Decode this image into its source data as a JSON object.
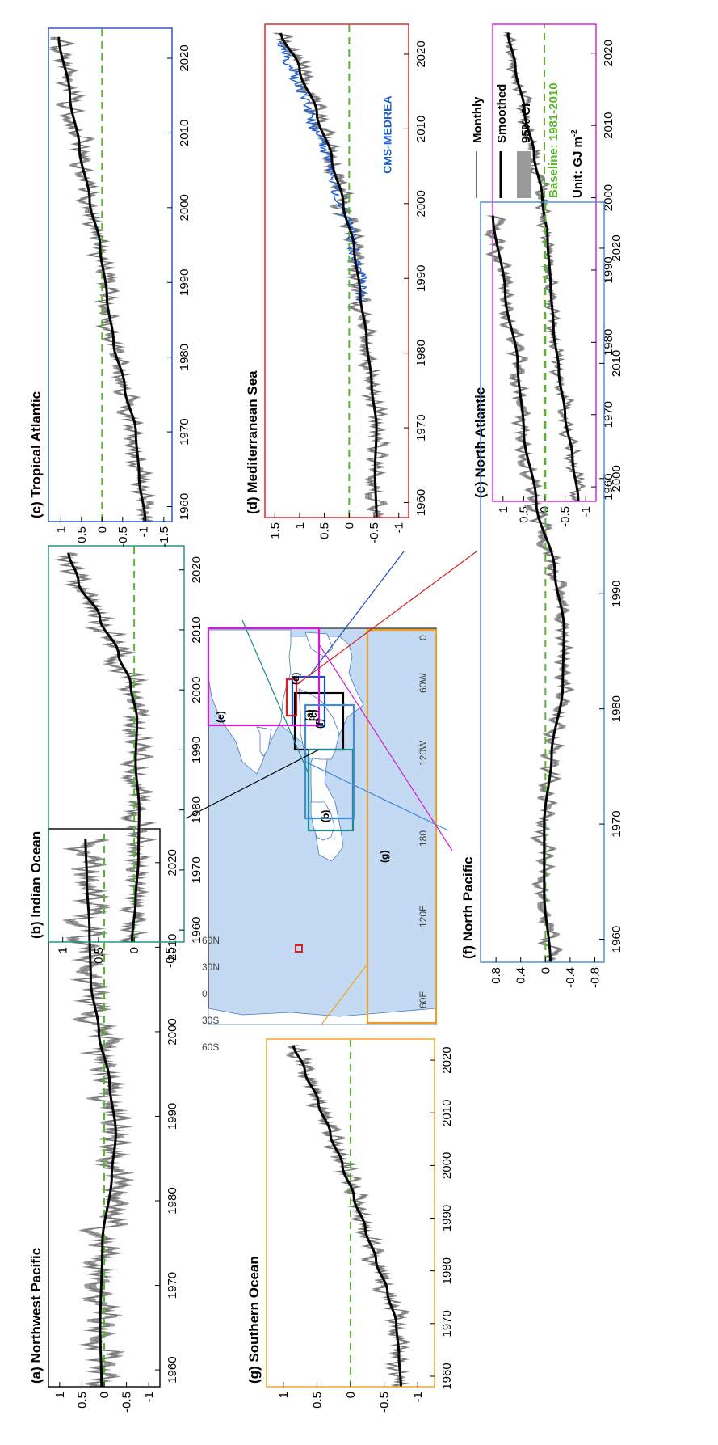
{
  "figure": {
    "map": {
      "lat_labels": [
        "60N",
        "30N",
        "0",
        "30S",
        "60S"
      ],
      "lon_labels": [
        "60E",
        "120E",
        "180",
        "120W",
        "60W",
        "0"
      ],
      "box_labels": [
        "(a)",
        "(b)",
        "(c)",
        "(d)",
        "(e)",
        "(f)",
        "(g)"
      ]
    },
    "legend": {
      "monthly": "Monthly",
      "smoothed": "Smoothed",
      "ci": "95% CI",
      "baseline": "Baseline: 1981-2010",
      "unit_prefix": "Unit: GJ m",
      "unit_sup": "-2"
    },
    "colors": {
      "monthly": "#6e6e6e",
      "ci": "#9a9a9a",
      "smoothed": "#000000",
      "baseline": "#5ab52e",
      "medrea": "#1f5fd6",
      "ocean": "#c4daf2",
      "land": "#ffffff"
    }
  },
  "chart_data": [
    {
      "id": "a",
      "type": "line",
      "title": "(a) Northwest Pacific",
      "frame": "#000000",
      "x_ticks": [
        1960,
        1970,
        1980,
        1990,
        2000,
        2010,
        2020
      ],
      "y_ticks": [
        -1,
        -0.5,
        0,
        0.5,
        1
      ],
      "y_tick_labels": [
        "-1",
        "-0.5",
        "0",
        "0.5",
        "1"
      ],
      "xlim": [
        1958,
        2024
      ],
      "ylim": [
        -1.25,
        1.25
      ],
      "baseline": 0,
      "smoothed": {
        "x": [
          1958,
          1965,
          1975,
          1983,
          1988,
          1994,
          2000,
          2006,
          2012,
          2018,
          2023
        ],
        "y": [
          0.06,
          0.09,
          0.04,
          -0.17,
          -0.26,
          -0.12,
          0.12,
          0.3,
          0.33,
          0.39,
          0.42
        ]
      },
      "noise": 0.3
    },
    {
      "id": "b",
      "type": "line",
      "title": "(b) Indian Ocean",
      "frame": "#1a8a8a",
      "x_ticks": [
        1960,
        1970,
        1980,
        1990,
        2000,
        2010,
        2020
      ],
      "y_ticks": [
        -0.5,
        0,
        0.5,
        1
      ],
      "y_tick_labels": [
        "-0.5",
        "0",
        "0.5",
        "1"
      ],
      "xlim": [
        1958,
        2024
      ],
      "ylim": [
        -0.7,
        1.2
      ],
      "baseline": 0,
      "smoothed": {
        "x": [
          1958,
          1965,
          1972,
          1980,
          1988,
          1995,
          2001,
          2006,
          2012,
          2018,
          2023
        ],
        "y": [
          0.03,
          -0.02,
          -0.06,
          -0.07,
          -0.02,
          -0.04,
          0.05,
          0.22,
          0.48,
          0.78,
          0.92
        ]
      },
      "noise": 0.14
    },
    {
      "id": "c",
      "type": "line",
      "title": "(c) Tropical Atlantic",
      "frame": "#1f4fc4",
      "x_ticks": [
        1960,
        1970,
        1980,
        1990,
        2000,
        2010,
        2020
      ],
      "y_ticks": [
        -1.5,
        -1,
        -0.5,
        0,
        0.5,
        1
      ],
      "y_tick_labels": [
        "-1.5",
        "-1",
        "-0.5",
        "0",
        "0.5",
        "1"
      ],
      "xlim": [
        1958,
        2024
      ],
      "ylim": [
        -1.7,
        1.3
      ],
      "baseline": 0,
      "smoothed": {
        "x": [
          1958,
          1964,
          1970,
          1976,
          1982,
          1988,
          1995,
          2001,
          2008,
          2015,
          2023
        ],
        "y": [
          -1.05,
          -0.9,
          -0.82,
          -0.55,
          -0.28,
          -0.12,
          0.05,
          0.3,
          0.55,
          0.78,
          1.05
        ]
      },
      "noise": 0.2
    },
    {
      "id": "d",
      "type": "line",
      "title": "(d) Mediterranean Sea",
      "frame": "#d62020",
      "annotation": "CMS-MEDREA",
      "x_ticks": [
        1960,
        1970,
        1980,
        1990,
        2000,
        2010,
        2020
      ],
      "y_ticks": [
        -1,
        -0.5,
        0,
        0.5,
        1,
        1.5
      ],
      "y_tick_labels": [
        "-1",
        "-0.5",
        "0",
        "0.5",
        "1",
        "1.5"
      ],
      "xlim": [
        1958,
        2024
      ],
      "ylim": [
        -1.2,
        1.7
      ],
      "baseline": 0,
      "smoothed": {
        "x": [
          1958,
          1964,
          1970,
          1976,
          1982,
          1988,
          1994,
          2000,
          2006,
          2012,
          2018,
          2023
        ],
        "y": [
          -0.55,
          -0.52,
          -0.55,
          -0.45,
          -0.35,
          -0.22,
          -0.1,
          0.12,
          0.35,
          0.65,
          1.0,
          1.38
        ]
      },
      "noise": 0.16,
      "medrea": {
        "x": [
          1987,
          1990,
          1993,
          1996,
          1999,
          2002,
          2005,
          2008,
          2011,
          2014,
          2017,
          2020,
          2022
        ],
        "y": [
          -0.2,
          -0.28,
          -0.1,
          -0.05,
          0.1,
          0.28,
          0.4,
          0.55,
          0.75,
          0.9,
          1.1,
          1.28,
          1.38
        ]
      }
    },
    {
      "id": "e",
      "type": "line",
      "title": "(e) North Atlantic",
      "frame": "#d41ad4",
      "x_ticks": [
        1960,
        1970,
        1980,
        1990,
        2000,
        2010,
        2020
      ],
      "y_ticks": [
        -1,
        -0.5,
        0,
        0.5,
        1
      ],
      "y_tick_labels": [
        "-1",
        "-0.5",
        "0",
        "0.5",
        "1"
      ],
      "xlim": [
        1958,
        2024
      ],
      "ylim": [
        -1.25,
        1.25
      ],
      "baseline": 0,
      "smoothed": {
        "x": [
          1958,
          1964,
          1970,
          1976,
          1982,
          1988,
          1994,
          2000,
          2006,
          2012,
          2018,
          2023
        ],
        "y": [
          -0.82,
          -0.68,
          -0.5,
          -0.35,
          -0.22,
          -0.15,
          -0.08,
          0.05,
          0.25,
          0.48,
          0.7,
          0.88
        ]
      },
      "noise": 0.13
    },
    {
      "id": "f",
      "type": "line",
      "title": "(f) North Pacific",
      "frame": "#3f8bde",
      "x_ticks": [
        1960,
        1970,
        1980,
        1990,
        2000,
        2010,
        2020
      ],
      "y_ticks": [
        -0.8,
        -0.4,
        0,
        0.4,
        0.8
      ],
      "y_tick_labels": [
        "-0.8",
        "-0.4",
        "0",
        "0.4",
        "0.8"
      ],
      "xlim": [
        1958,
        2024
      ],
      "ylim": [
        -0.95,
        1.05
      ],
      "baseline": 0,
      "smoothed": {
        "x": [
          1958,
          1964,
          1970,
          1976,
          1982,
          1987,
          1992,
          1998,
          2004,
          2010,
          2016,
          2023
        ],
        "y": [
          -0.08,
          0.02,
          0.02,
          -0.1,
          -0.28,
          -0.3,
          -0.15,
          0.15,
          0.35,
          0.45,
          0.65,
          0.85
        ]
      },
      "noise": 0.12
    },
    {
      "id": "g",
      "type": "line",
      "title": "(g) Southern Ocean",
      "frame": "#f0a01e",
      "x_ticks": [
        1960,
        1970,
        1980,
        1990,
        2000,
        2010,
        2020
      ],
      "y_ticks": [
        -1,
        -0.5,
        0,
        0.5,
        1
      ],
      "y_tick_labels": [
        "-1",
        "-0.5",
        "0",
        "0.5",
        "1"
      ],
      "xlim": [
        1958,
        2024
      ],
      "ylim": [
        -1.25,
        1.25
      ],
      "baseline": 0,
      "smoothed": {
        "x": [
          1958,
          1964,
          1970,
          1976,
          1982,
          1988,
          1994,
          2000,
          2006,
          2012,
          2018,
          2023
        ],
        "y": [
          -0.75,
          -0.72,
          -0.68,
          -0.55,
          -0.38,
          -0.22,
          -0.05,
          0.12,
          0.3,
          0.48,
          0.68,
          0.85
        ]
      },
      "noise": 0.12
    }
  ]
}
